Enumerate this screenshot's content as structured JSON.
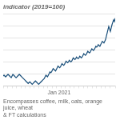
{
  "chart_data": {
    "type": "line",
    "title": "indicator (2019=100)",
    "xlabel": "Jan 2021",
    "annotations": [
      "Encompasses coffee, milk, oats, orange juice, wheat\n& FT calculations"
    ],
    "x": [
      0,
      1,
      2,
      3,
      4,
      5,
      6,
      7,
      8,
      9,
      10,
      11,
      12,
      13,
      14,
      15,
      16,
      17,
      18,
      19,
      20,
      21,
      22,
      23,
      24,
      25,
      26,
      27,
      28,
      29,
      30,
      31,
      32,
      33,
      34,
      35,
      36,
      37,
      38,
      39,
      40,
      41,
      42,
      43,
      44,
      45,
      46,
      47,
      48,
      49,
      50,
      51,
      52,
      53,
      54,
      55,
      56,
      57,
      58,
      59,
      60,
      61,
      62,
      63,
      64,
      65,
      66,
      67,
      68,
      69,
      70,
      71,
      72,
      73,
      74,
      75,
      76,
      77,
      78,
      79,
      80,
      81,
      82,
      83,
      84,
      85,
      86,
      87,
      88,
      89,
      90,
      91,
      92,
      93,
      94,
      95,
      96,
      97,
      98,
      99,
      100,
      101,
      102,
      103,
      104,
      105,
      106,
      107,
      108,
      109,
      110,
      111,
      112,
      113,
      114,
      115,
      116,
      117,
      118,
      119,
      120,
      121,
      122,
      123,
      124,
      125,
      126,
      127,
      128,
      129,
      130,
      131,
      132,
      133,
      134,
      135,
      136,
      137,
      138,
      139
    ],
    "values": [
      100,
      101,
      100,
      99,
      100,
      101,
      102,
      101,
      100,
      99,
      98,
      100,
      102,
      101,
      100,
      99,
      98,
      99,
      100,
      101,
      102,
      101,
      100,
      99,
      98,
      97,
      96,
      95,
      94,
      93,
      92,
      91,
      92,
      93,
      92,
      91,
      90,
      91,
      92,
      93,
      94,
      93,
      92,
      91,
      90,
      91,
      92,
      93,
      94,
      95,
      96,
      97,
      99,
      101,
      100,
      99,
      101,
      103,
      105,
      104,
      105,
      107,
      109,
      108,
      107,
      106,
      108,
      110,
      112,
      111,
      110,
      111,
      113,
      115,
      114,
      113,
      114,
      116,
      118,
      117,
      116,
      117,
      119,
      118,
      117,
      118,
      120,
      122,
      121,
      120,
      121,
      123,
      122,
      121,
      122,
      124,
      123,
      122,
      123,
      125,
      127,
      126,
      125,
      126,
      128,
      130,
      129,
      128,
      129,
      131,
      133,
      132,
      131,
      132,
      134,
      136,
      135,
      136,
      138,
      137,
      136,
      138,
      140,
      142,
      141,
      140,
      142,
      144,
      148,
      152,
      156,
      160,
      157,
      154,
      158,
      162,
      165,
      168,
      166,
      170
    ],
    "color": "#1a4f7a",
    "xlim": [
      0,
      139
    ],
    "xticks": [
      0,
      5,
      11,
      16,
      22,
      27,
      33,
      38,
      44,
      50,
      55,
      61,
      66,
      72,
      77,
      83,
      88,
      94,
      100,
      105,
      111,
      116,
      122,
      127,
      133,
      139
    ],
    "ylim": [
      88,
      175
    ],
    "yticks": [
      88,
      102.5,
      117,
      131.5,
      146,
      160.5,
      175
    ],
    "grid": "y",
    "tick_labels": false
  }
}
